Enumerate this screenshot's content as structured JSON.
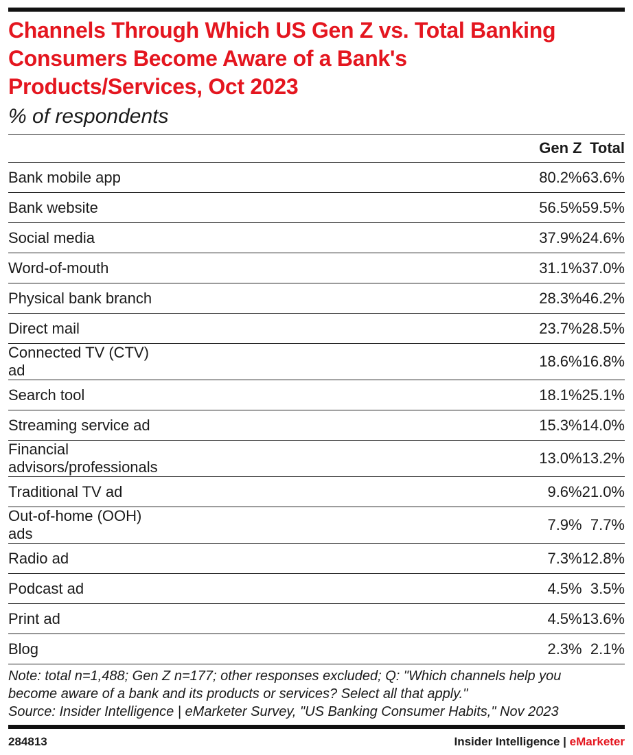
{
  "chart_data": {
    "type": "table",
    "title": "Channels Through Which US Gen Z vs. Total Banking Consumers Become Aware of a Bank's Products/Services, Oct 2023",
    "subtitle": "% of respondents",
    "columns": [
      "",
      "Gen Z",
      "Total"
    ],
    "rows": [
      {
        "label": "Bank mobile app",
        "gen_z": "80.2%",
        "total": "63.6%"
      },
      {
        "label": "Bank website",
        "gen_z": "56.5%",
        "total": "59.5%"
      },
      {
        "label": "Social media",
        "gen_z": "37.9%",
        "total": "24.6%"
      },
      {
        "label": "Word-of-mouth",
        "gen_z": "31.1%",
        "total": "37.0%"
      },
      {
        "label": "Physical bank branch",
        "gen_z": "28.3%",
        "total": "46.2%"
      },
      {
        "label": "Direct mail",
        "gen_z": "23.7%",
        "total": "28.5%"
      },
      {
        "label": "Connected TV (CTV) ad",
        "gen_z": "18.6%",
        "total": "16.8%"
      },
      {
        "label": "Search tool",
        "gen_z": "18.1%",
        "total": "25.1%"
      },
      {
        "label": "Streaming service ad",
        "gen_z": "15.3%",
        "total": "14.0%"
      },
      {
        "label": "Financial advisors/professionals",
        "gen_z": "13.0%",
        "total": "13.2%"
      },
      {
        "label": "Traditional TV ad",
        "gen_z": "9.6%",
        "total": "21.0%"
      },
      {
        "label": "Out-of-home (OOH) ads",
        "gen_z": "7.9%",
        "total": "7.7%"
      },
      {
        "label": "Radio ad",
        "gen_z": "7.3%",
        "total": "12.8%"
      },
      {
        "label": "Podcast ad",
        "gen_z": "4.5%",
        "total": "3.5%"
      },
      {
        "label": "Print ad",
        "gen_z": "4.5%",
        "total": "13.6%"
      },
      {
        "label": "Blog",
        "gen_z": "2.3%",
        "total": "2.1%"
      }
    ],
    "note_lines": [
      "Note: total n=1,488; Gen Z n=177; other responses excluded; Q: \"Which channels help you",
      "become aware of a bank and its products or services? Select all that apply.\"",
      "Source: Insider Intelligence | eMarketer Survey, \"US Banking Consumer Habits,\" Nov 2023"
    ]
  },
  "footer": {
    "id": "284813",
    "brand_left": "Insider Intelligence | ",
    "brand_right": "eMarketer"
  },
  "colors": {
    "title": "#e4161f",
    "accent": "#e4161f"
  }
}
